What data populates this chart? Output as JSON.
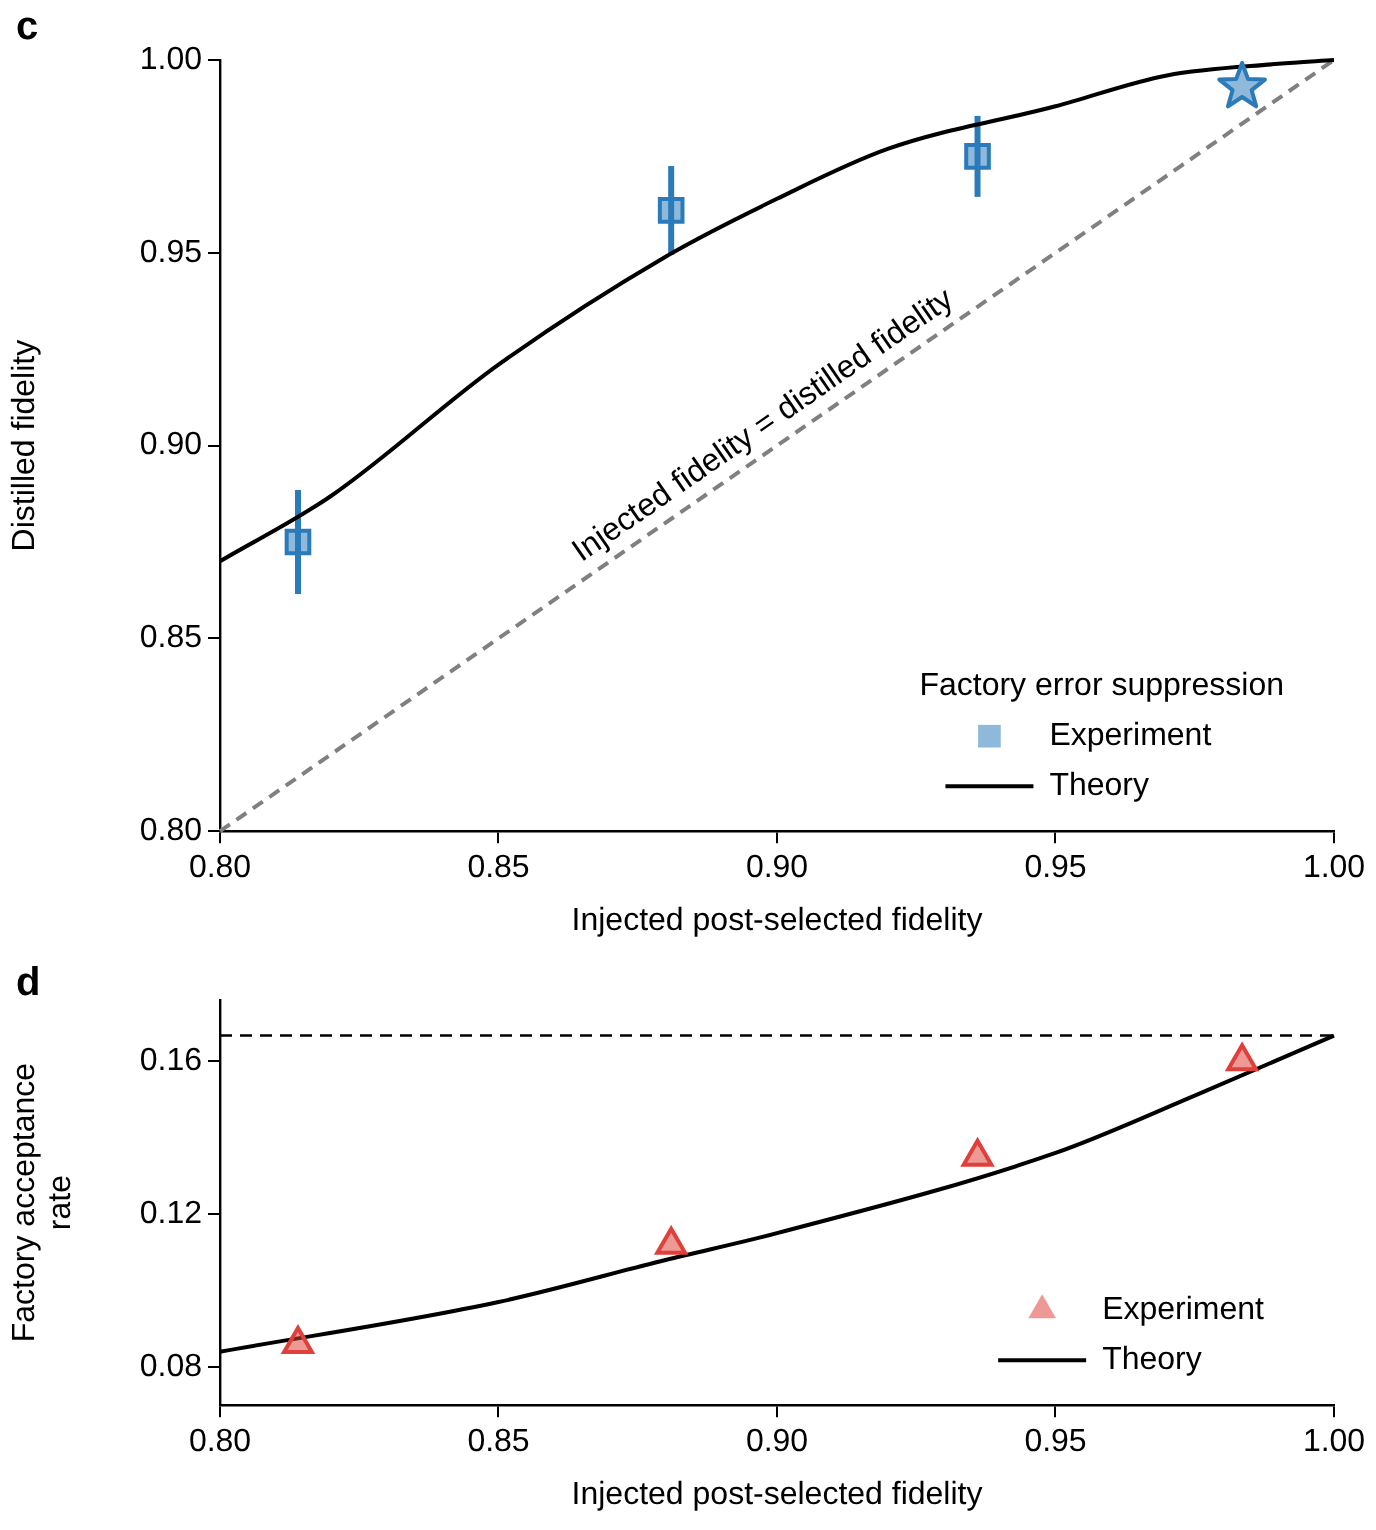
{
  "chart_data": [
    {
      "type": "scatter",
      "xlabel": "Injected post-selected fidelity",
      "ylabel": "Distilled fidelity",
      "legend_title": "Factory error suppression",
      "legend": "bottom right",
      "grid": false,
      "xlim": [
        0.8,
        1.0
      ],
      "ylim": [
        0.8,
        1.0
      ],
      "xticks": [
        {
          "value": 0.8,
          "label": "0.80"
        },
        {
          "value": 0.85,
          "label": "0.85"
        },
        {
          "value": 0.9,
          "label": "0.90"
        },
        {
          "value": 0.95,
          "label": "0.95"
        },
        {
          "value": 1.0,
          "label": "1.00"
        }
      ],
      "yticks": [
        {
          "value": 0.8,
          "label": "0.80"
        },
        {
          "value": 0.85,
          "label": "0.85"
        },
        {
          "value": 0.9,
          "label": "0.90"
        },
        {
          "value": 0.95,
          "label": "0.95"
        },
        {
          "value": 1.0,
          "label": "1.00"
        }
      ],
      "series": [
        {
          "type": "scatter",
          "name": "Experiment",
          "color": "#2b7bba",
          "marker": "square",
          "x": [
            0.814,
            0.881,
            0.936
          ],
          "values": [
            0.875,
            0.961,
            0.975
          ],
          "errors": [
            0.0135,
            0.0115,
            0.0105
          ]
        },
        {
          "type": "scatter",
          "color": "#2b7bba",
          "marker": "star",
          "x": [
            0.9835
          ],
          "values": [
            0.993
          ]
        },
        {
          "type": "line",
          "name": "Theory",
          "color": "#000000",
          "line_style": "solid",
          "x": [
            0.8,
            0.82,
            0.85,
            0.88,
            0.9,
            0.92,
            0.95,
            0.97,
            0.99,
            1.0
          ],
          "values": [
            0.87,
            0.887,
            0.921,
            0.949,
            0.964,
            0.977,
            0.988,
            0.996,
            0.999,
            1.0
          ]
        },
        {
          "type": "line",
          "color": "#808080",
          "line_style": "dashed",
          "x": [
            0.8,
            1.0
          ],
          "values": [
            0.8,
            1.0
          ]
        }
      ],
      "annotations": [
        "c",
        {
          "text": "Injected fidelity = distilled fidelity",
          "x": 0.9,
          "y": 0.9
        }
      ]
    },
    {
      "type": "scatter",
      "xlabel": "Injected post-selected fidelity",
      "ylabel": "Factory acceptance rate",
      "legend": "bottom right",
      "grid": false,
      "xlim": [
        0.8,
        1.0
      ],
      "ylim": [
        0.07,
        0.176
      ],
      "xticks": [
        {
          "value": 0.8,
          "label": "0.80"
        },
        {
          "value": 0.85,
          "label": "0.85"
        },
        {
          "value": 0.9,
          "label": "0.90"
        },
        {
          "value": 0.95,
          "label": "0.95"
        },
        {
          "value": 1.0,
          "label": "1.00"
        }
      ],
      "yticks": [
        {
          "value": 0.08,
          "label": "0.08"
        },
        {
          "value": 0.12,
          "label": "0.12"
        },
        {
          "value": 0.16,
          "label": "0.16"
        }
      ],
      "series": [
        {
          "type": "scatter",
          "name": "Experiment",
          "color": "#e0403a",
          "marker": "triangle",
          "x": [
            0.814,
            0.881,
            0.936,
            0.9835
          ],
          "values": [
            0.086,
            0.112,
            0.135,
            0.16
          ]
        },
        {
          "type": "line",
          "name": "Theory",
          "color": "#000000",
          "line_style": "solid",
          "x": [
            0.8,
            0.85,
            0.88,
            0.9,
            0.95,
            0.975,
            1.0
          ],
          "values": [
            0.084,
            0.097,
            0.108,
            0.115,
            0.136,
            0.151,
            0.1667
          ]
        }
      ],
      "ref_lines": [
        {
          "axis": "y",
          "value": 0.1667,
          "color": "#000000",
          "line_style": "dashed"
        }
      ],
      "annotations": [
        "d"
      ]
    }
  ]
}
